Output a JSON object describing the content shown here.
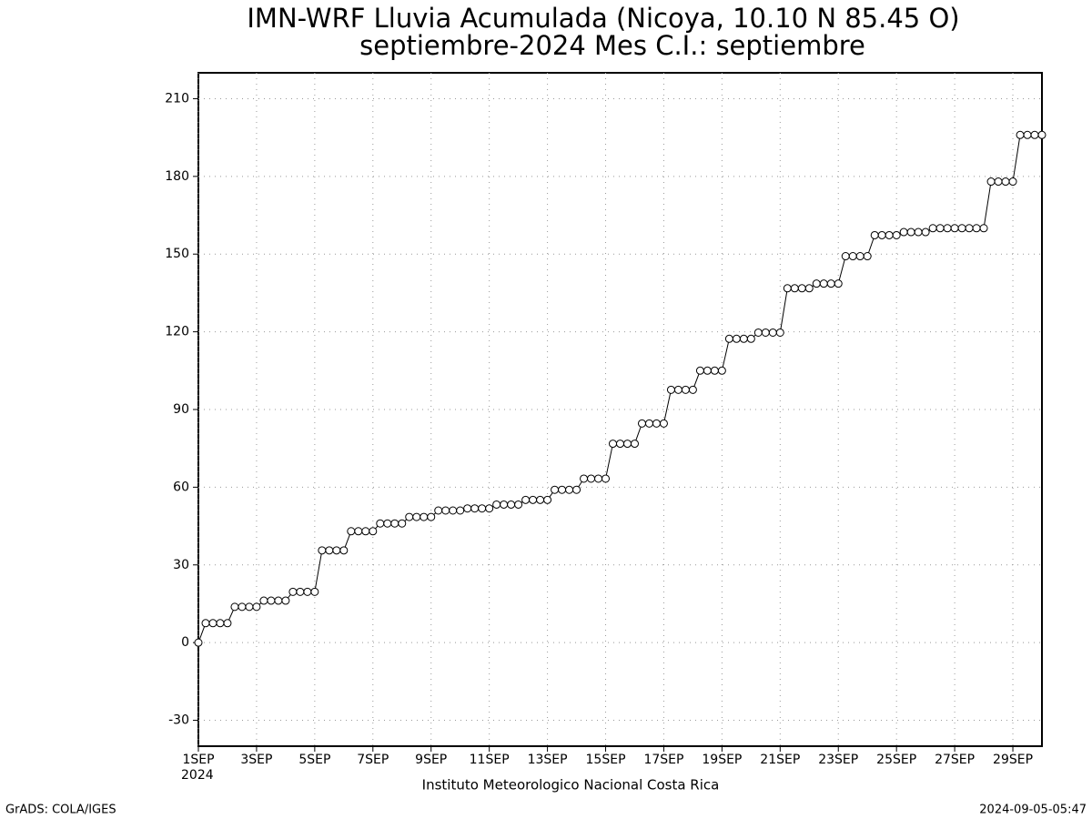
{
  "chart_data": {
    "type": "line",
    "title": "IMN-WRF  Lluvia Acumulada (Nicoya, 10.10  N 85.45  O)",
    "subtitle": "septiembre-2024 Mes C.I.: septiembre",
    "x_axis_year": "2024",
    "credit": "Instituto Meteorologico Nacional Costa Rica",
    "software": "GrADS: COLA/IGES",
    "timestamp": "2024-09-05-05:47",
    "grid": true,
    "xlim": [
      0,
      29
    ],
    "ylim": [
      -40,
      220
    ],
    "yticks": [
      -30,
      0,
      30,
      60,
      90,
      120,
      150,
      180,
      210
    ],
    "xticks": [
      {
        "value": 0,
        "label": "1SEP"
      },
      {
        "value": 2,
        "label": "3SEP"
      },
      {
        "value": 4,
        "label": "5SEP"
      },
      {
        "value": 6,
        "label": "7SEP"
      },
      {
        "value": 8,
        "label": "9SEP"
      },
      {
        "value": 10,
        "label": "11SEP"
      },
      {
        "value": 12,
        "label": "13SEP"
      },
      {
        "value": 14,
        "label": "15SEP"
      },
      {
        "value": 16,
        "label": "17SEP"
      },
      {
        "value": 18,
        "label": "19SEP"
      },
      {
        "value": 20,
        "label": "21SEP"
      },
      {
        "value": 22,
        "label": "23SEP"
      },
      {
        "value": 24,
        "label": "25SEP"
      },
      {
        "value": 26,
        "label": "27SEP"
      },
      {
        "value": 28,
        "label": "29SEP"
      }
    ],
    "x": [
      0,
      0.25,
      0.5,
      0.75,
      1,
      1.25,
      1.5,
      1.75,
      2,
      2.25,
      2.5,
      2.75,
      3,
      3.25,
      3.5,
      3.75,
      4,
      4.25,
      4.5,
      4.75,
      5,
      5.25,
      5.5,
      5.75,
      6,
      6.25,
      6.5,
      6.75,
      7,
      7.25,
      7.5,
      7.75,
      8,
      8.25,
      8.5,
      8.75,
      9,
      9.25,
      9.5,
      9.75,
      10,
      10.25,
      10.5,
      10.75,
      11,
      11.25,
      11.5,
      11.75,
      12,
      12.25,
      12.5,
      12.75,
      13,
      13.25,
      13.5,
      13.75,
      14,
      14.25,
      14.5,
      14.75,
      15,
      15.25,
      15.5,
      15.75,
      16,
      16.25,
      16.5,
      16.75,
      17,
      17.25,
      17.5,
      17.75,
      18,
      18.25,
      18.5,
      18.75,
      19,
      19.25,
      19.5,
      19.75,
      20,
      20.25,
      20.5,
      20.75,
      21,
      21.25,
      21.5,
      21.75,
      22,
      22.25,
      22.5,
      22.75,
      23,
      23.25,
      23.5,
      23.75,
      24,
      24.25,
      24.5,
      24.75,
      25,
      25.25,
      25.5,
      25.75,
      26,
      26.25,
      26.5,
      26.75,
      27,
      27.25,
      27.5,
      27.75,
      28,
      28.25,
      28.5,
      28.75,
      29
    ],
    "series": [
      {
        "color": "#000000",
        "values": [
          0,
          7.5,
          7.5,
          7.5,
          7.5,
          13.8,
          13.8,
          13.8,
          13.8,
          16.2,
          16.2,
          16.2,
          16.2,
          19.6,
          19.6,
          19.6,
          19.6,
          35.6,
          35.6,
          35.6,
          35.6,
          43,
          43,
          43,
          43,
          46,
          46,
          46,
          46,
          48.5,
          48.5,
          48.5,
          48.5,
          51,
          51,
          51,
          51,
          51.8,
          51.8,
          51.8,
          51.8,
          53.3,
          53.3,
          53.3,
          53.3,
          55.1,
          55.1,
          55.1,
          55.1,
          59,
          59,
          59,
          59,
          63.3,
          63.3,
          63.3,
          63.3,
          76.8,
          76.8,
          76.8,
          76.8,
          84.6,
          84.6,
          84.6,
          84.6,
          97.6,
          97.6,
          97.6,
          97.6,
          105,
          105,
          105,
          105,
          117.3,
          117.3,
          117.3,
          117.3,
          119.7,
          119.7,
          119.7,
          119.7,
          136.8,
          136.8,
          136.8,
          136.8,
          138.6,
          138.6,
          138.6,
          138.6,
          149.2,
          149.2,
          149.2,
          149.2,
          157.3,
          157.3,
          157.3,
          157.3,
          158.5,
          158.5,
          158.5,
          158.5,
          160,
          160,
          160,
          160,
          160,
          160,
          160,
          160,
          178,
          178,
          178,
          178,
          196,
          196,
          196,
          196
        ]
      }
    ]
  }
}
